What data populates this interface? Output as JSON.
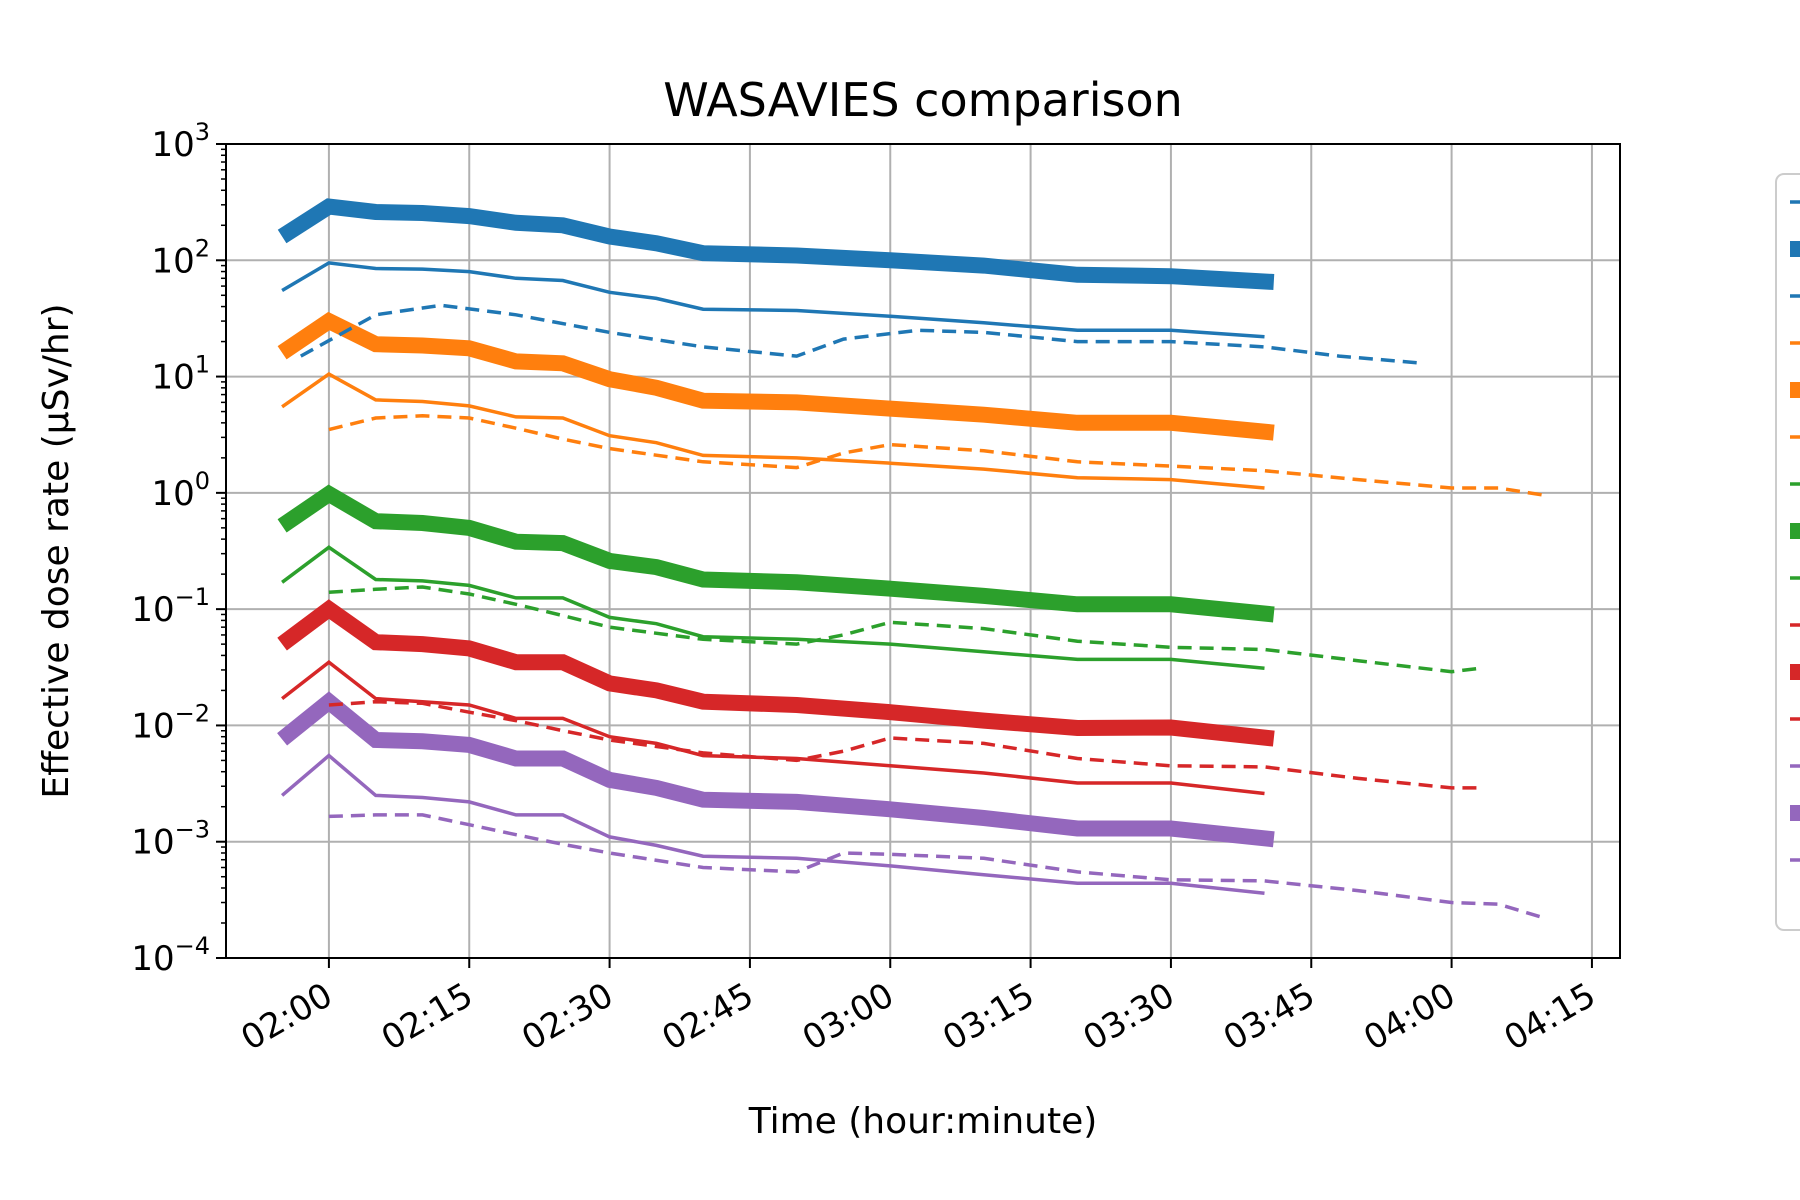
{
  "chart_data": {
    "type": "line",
    "title": "WASAVIES comparison",
    "xlabel": "Time (hour:minute)",
    "ylabel": "Effective dose rate (μSv/hr)",
    "y_scale": "log",
    "ylim": [
      0.0001,
      1000
    ],
    "xlim": [
      "01:49",
      "04:18"
    ],
    "x_ticks": [
      "02:00",
      "02:15",
      "02:30",
      "02:45",
      "03:00",
      "03:15",
      "03:30",
      "03:45",
      "04:00",
      "04:15"
    ],
    "y_ticks": [
      {
        "base": "10",
        "exp": "−4",
        "value": 0.0001
      },
      {
        "base": "10",
        "exp": "−3",
        "value": 0.001
      },
      {
        "base": "10",
        "exp": "−2",
        "value": 0.01
      },
      {
        "base": "10",
        "exp": "−1",
        "value": 0.1
      },
      {
        "base": "10",
        "exp": "0",
        "value": 1
      },
      {
        "base": "10",
        "exp": "1",
        "value": 10
      },
      {
        "base": "10",
        "exp": "2",
        "value": 100
      },
      {
        "base": "10",
        "exp": "3",
        "value": 1000
      }
    ],
    "grid": true,
    "legend_placement": "right",
    "series": [
      {
        "color": "#1f77b4",
        "style": "thick",
        "x": [
          "01:55",
          "02:00",
          "02:05",
          "02:10",
          "02:15",
          "02:20",
          "02:25",
          "02:30",
          "02:35",
          "02:40",
          "02:50",
          "03:00",
          "03:10",
          "03:20",
          "03:30",
          "03:41"
        ],
        "values": [
          160,
          290,
          260,
          255,
          240,
          210,
          200,
          160,
          140,
          115,
          110,
          100,
          90,
          75,
          73,
          65
        ]
      },
      {
        "color": "#1f77b4",
        "style": "thin",
        "x": [
          "01:55",
          "02:00",
          "02:05",
          "02:10",
          "02:15",
          "02:20",
          "02:25",
          "02:30",
          "02:35",
          "02:40",
          "02:50",
          "03:00",
          "03:10",
          "03:20",
          "03:30",
          "03:40"
        ],
        "values": [
          55,
          95,
          85,
          84,
          80,
          70,
          67,
          53,
          47,
          38,
          37,
          33,
          29,
          25,
          25,
          22
        ]
      },
      {
        "color": "#1f77b4",
        "style": "dashed",
        "x": [
          "01:57",
          "02:05",
          "02:12",
          "02:20",
          "02:30",
          "02:40",
          "02:50",
          "02:55",
          "03:03",
          "03:10",
          "03:20",
          "03:30",
          "03:40",
          "03:48",
          "03:57"
        ],
        "values": [
          15,
          34,
          41,
          34,
          24,
          18,
          15,
          21,
          25,
          24,
          20,
          20,
          18,
          15,
          13
        ]
      },
      {
        "color": "#ff7f0e",
        "style": "thick",
        "x": [
          "01:55",
          "02:00",
          "02:05",
          "02:10",
          "02:15",
          "02:20",
          "02:25",
          "02:30",
          "02:35",
          "02:40",
          "02:50",
          "03:00",
          "03:10",
          "03:20",
          "03:30",
          "03:41"
        ],
        "values": [
          16,
          30,
          19,
          18.5,
          17.5,
          13.5,
          13,
          9.5,
          8,
          6.2,
          6,
          5.3,
          4.7,
          4,
          4,
          3.3
        ]
      },
      {
        "color": "#ff7f0e",
        "style": "thin",
        "x": [
          "01:55",
          "02:00",
          "02:05",
          "02:10",
          "02:15",
          "02:20",
          "02:25",
          "02:30",
          "02:35",
          "02:40",
          "02:50",
          "03:00",
          "03:10",
          "03:20",
          "03:30",
          "03:40"
        ],
        "values": [
          5.5,
          10.5,
          6.3,
          6.1,
          5.6,
          4.5,
          4.4,
          3.1,
          2.7,
          2.1,
          2,
          1.8,
          1.6,
          1.35,
          1.3,
          1.1
        ]
      },
      {
        "color": "#ff7f0e",
        "style": "dashed",
        "x": [
          "02:00",
          "02:05",
          "02:10",
          "02:15",
          "02:20",
          "02:25",
          "02:30",
          "02:40",
          "02:50",
          "02:55",
          "03:00",
          "03:10",
          "03:20",
          "03:30",
          "03:40",
          "03:50",
          "04:00",
          "04:05",
          "04:10"
        ],
        "values": [
          3.5,
          4.4,
          4.6,
          4.4,
          3.6,
          2.9,
          2.4,
          1.85,
          1.65,
          2.2,
          2.6,
          2.3,
          1.85,
          1.7,
          1.55,
          1.3,
          1.1,
          1.1,
          0.95
        ]
      },
      {
        "color": "#2ca02c",
        "style": "thick",
        "x": [
          "01:55",
          "02:00",
          "02:05",
          "02:10",
          "02:15",
          "02:20",
          "02:25",
          "02:30",
          "02:35",
          "02:40",
          "02:50",
          "03:00",
          "03:10",
          "03:20",
          "03:30",
          "03:41"
        ],
        "values": [
          0.52,
          0.98,
          0.57,
          0.55,
          0.5,
          0.38,
          0.37,
          0.26,
          0.23,
          0.18,
          0.17,
          0.15,
          0.13,
          0.11,
          0.11,
          0.09
        ]
      },
      {
        "color": "#2ca02c",
        "style": "thin",
        "x": [
          "01:55",
          "02:00",
          "02:05",
          "02:10",
          "02:15",
          "02:20",
          "02:25",
          "02:30",
          "02:35",
          "02:40",
          "02:50",
          "03:00",
          "03:10",
          "03:20",
          "03:30",
          "03:40"
        ],
        "values": [
          0.17,
          0.34,
          0.18,
          0.175,
          0.16,
          0.125,
          0.125,
          0.085,
          0.075,
          0.058,
          0.055,
          0.05,
          0.043,
          0.037,
          0.037,
          0.031
        ]
      },
      {
        "color": "#2ca02c",
        "style": "dashed",
        "x": [
          "02:00",
          "02:05",
          "02:10",
          "02:15",
          "02:20",
          "02:25",
          "02:30",
          "02:40",
          "02:50",
          "02:55",
          "03:00",
          "03:10",
          "03:20",
          "03:30",
          "03:40",
          "03:50",
          "04:00",
          "04:03"
        ],
        "values": [
          0.14,
          0.148,
          0.155,
          0.135,
          0.11,
          0.088,
          0.07,
          0.055,
          0.05,
          0.06,
          0.077,
          0.068,
          0.053,
          0.047,
          0.045,
          0.036,
          0.029,
          0.031
        ]
      },
      {
        "color": "#d62728",
        "style": "thick",
        "x": [
          "01:55",
          "02:00",
          "02:05",
          "02:10",
          "02:15",
          "02:20",
          "02:25",
          "02:30",
          "02:35",
          "02:40",
          "02:50",
          "03:00",
          "03:10",
          "03:20",
          "03:30",
          "03:41"
        ],
        "values": [
          0.05,
          0.1,
          0.052,
          0.05,
          0.046,
          0.035,
          0.035,
          0.023,
          0.02,
          0.016,
          0.015,
          0.013,
          0.011,
          0.0095,
          0.0096,
          0.0077
        ]
      },
      {
        "color": "#d62728",
        "style": "thin",
        "x": [
          "01:55",
          "02:00",
          "02:05",
          "02:10",
          "02:15",
          "02:20",
          "02:25",
          "02:30",
          "02:35",
          "02:40",
          "02:50",
          "03:00",
          "03:10",
          "03:20",
          "03:30",
          "03:40"
        ],
        "values": [
          0.017,
          0.035,
          0.017,
          0.016,
          0.015,
          0.0115,
          0.0115,
          0.008,
          0.007,
          0.0055,
          0.0052,
          0.0045,
          0.0039,
          0.0032,
          0.0032,
          0.0026
        ]
      },
      {
        "color": "#d62728",
        "style": "dashed",
        "x": [
          "02:00",
          "02:05",
          "02:10",
          "02:15",
          "02:20",
          "02:25",
          "02:30",
          "02:40",
          "02:50",
          "02:55",
          "03:00",
          "03:10",
          "03:20",
          "03:30",
          "03:40",
          "03:50",
          "04:00",
          "04:03"
        ],
        "values": [
          0.015,
          0.016,
          0.0155,
          0.013,
          0.011,
          0.009,
          0.0075,
          0.0058,
          0.005,
          0.006,
          0.0078,
          0.007,
          0.0052,
          0.0045,
          0.0044,
          0.0035,
          0.0029,
          0.0029
        ]
      },
      {
        "color": "#9467bd",
        "style": "thick",
        "x": [
          "01:55",
          "02:00",
          "02:05",
          "02:10",
          "02:15",
          "02:20",
          "02:25",
          "02:30",
          "02:35",
          "02:40",
          "02:50",
          "03:00",
          "03:10",
          "03:20",
          "03:30",
          "03:41"
        ],
        "values": [
          0.0076,
          0.016,
          0.0075,
          0.0073,
          0.0068,
          0.0052,
          0.0052,
          0.0034,
          0.0029,
          0.0023,
          0.0022,
          0.0019,
          0.0016,
          0.0013,
          0.0013,
          0.00105
        ]
      },
      {
        "color": "#9467bd",
        "style": "thin",
        "x": [
          "01:55",
          "02:00",
          "02:05",
          "02:10",
          "02:15",
          "02:20",
          "02:25",
          "02:30",
          "02:35",
          "02:40",
          "02:50",
          "03:00",
          "03:10",
          "03:20",
          "03:30",
          "03:40"
        ],
        "values": [
          0.0025,
          0.0055,
          0.0025,
          0.0024,
          0.0022,
          0.0017,
          0.0017,
          0.0011,
          0.00093,
          0.00075,
          0.00072,
          0.00062,
          0.00052,
          0.00044,
          0.00044,
          0.00036
        ]
      },
      {
        "color": "#9467bd",
        "style": "dashed",
        "x": [
          "02:00",
          "02:05",
          "02:10",
          "02:15",
          "02:20",
          "02:25",
          "02:30",
          "02:40",
          "02:50",
          "02:55",
          "03:00",
          "03:10",
          "03:20",
          "03:30",
          "03:40",
          "03:50",
          "04:00",
          "04:05",
          "04:10"
        ],
        "values": [
          0.00165,
          0.0017,
          0.0017,
          0.0014,
          0.00115,
          0.00095,
          0.0008,
          0.0006,
          0.00055,
          0.0008,
          0.00078,
          0.00072,
          0.00055,
          0.00047,
          0.00046,
          0.00038,
          0.0003,
          0.00029,
          0.00022
        ]
      }
    ],
    "legend_order": [
      2,
      0,
      1,
      5,
      3,
      4,
      8,
      6,
      7,
      11,
      9,
      10,
      14,
      12,
      13
    ]
  }
}
